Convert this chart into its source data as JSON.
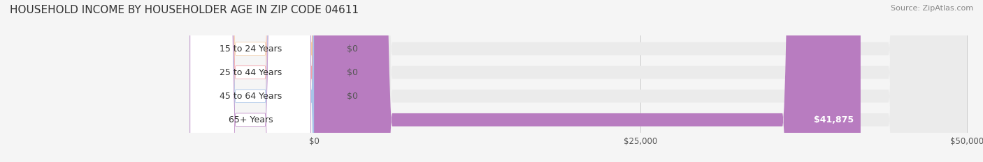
{
  "title": "HOUSEHOLD INCOME BY HOUSEHOLDER AGE IN ZIP CODE 04611",
  "source_text": "Source: ZipAtlas.com",
  "categories": [
    "15 to 24 Years",
    "25 to 44 Years",
    "45 to 64 Years",
    "65+ Years"
  ],
  "values": [
    0,
    0,
    0,
    41875
  ],
  "bar_colors": [
    "#f5c9a0",
    "#f5a0a8",
    "#a8c4e8",
    "#b87cc0"
  ],
  "label_colors": [
    "#f5c9a0",
    "#f5a0a8",
    "#a8c4e8",
    "#b87cc0"
  ],
  "bar_height": 0.55,
  "xlim": [
    0,
    50000
  ],
  "xticks": [
    0,
    25000,
    50000
  ],
  "xtick_labels": [
    "$0",
    "$25,000",
    "$50,000"
  ],
  "background_color": "#f5f5f5",
  "bar_background_color": "#ebebeb",
  "value_label_41875": "$41,875",
  "value_label_0": "$0",
  "figsize": [
    14.06,
    2.33
  ],
  "dpi": 100
}
